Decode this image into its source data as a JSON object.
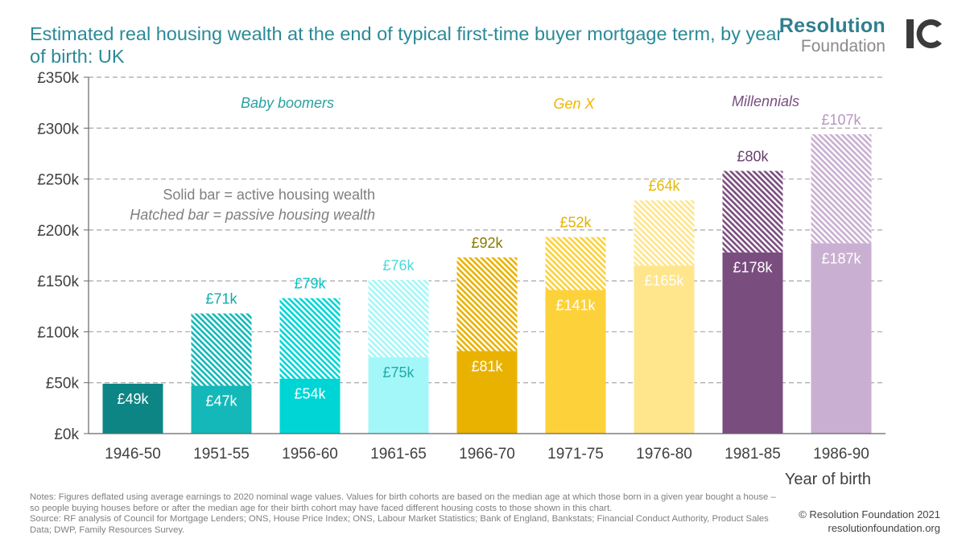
{
  "title": "Estimated real housing wealth at the end of typical first-time buyer mortgage term, by year of birth: UK",
  "logo": {
    "line1": "Resolution",
    "line2": "Foundation",
    "mark": "IC"
  },
  "notes": "Notes: Figures deflated using average earnings to 2020 nominal wage values. Values for birth cohorts are based on the median age at which those born in a given year bought a house – so people buying houses before or after the median age for their birth cohort may have faced different housing costs to those shown in this chart.",
  "source": "Source: RF analysis of Council for Mortgage Lenders; ONS, House Price Index; ONS, Labour Market Statistics; Bank of England, Bankstats; Financial Conduct Authority, Product Sales Data; DWP, Family Resources Survey.",
  "copyright": "© Resolution Foundation 2021",
  "website": "resolutionfoundation.org",
  "chart_data": {
    "type": "bar",
    "stacked": true,
    "categories": [
      "1946-50",
      "1951-55",
      "1956-60",
      "1961-65",
      "1966-70",
      "1971-75",
      "1976-80",
      "1981-85",
      "1986-90"
    ],
    "series": [
      {
        "name": "active housing wealth",
        "values": [
          49,
          47,
          54,
          75,
          81,
          141,
          165,
          178,
          187
        ],
        "labels": [
          "£49k",
          "£47k",
          "£54k",
          "£75k",
          "£81k",
          "£141k",
          "£165k",
          "£178k",
          "£187k"
        ]
      },
      {
        "name": "passive housing wealth",
        "values": [
          0,
          71,
          79,
          76,
          92,
          52,
          64,
          80,
          107
        ],
        "labels": [
          "",
          "£71k",
          "£79k",
          "£76k",
          "£92k",
          "£52k",
          "£64k",
          "£80k",
          "£107k"
        ]
      }
    ],
    "colors": [
      "#0e8585",
      "#14b8b8",
      "#00d5d5",
      "#a4f7f8",
      "#e9b200",
      "#fdd13a",
      "#ffe58c",
      "#7a4d7f",
      "#c9afd1"
    ],
    "label_colors_active": [
      "#ffffff",
      "#ffffff",
      "#ffffff",
      "#22aaaa",
      "#ffffff",
      "#ffffff",
      "#ffffff",
      "#ffffff",
      "#ffffff"
    ],
    "label_colors_passive": [
      "",
      "#14a8a8",
      "#00c4c4",
      "#4fd8da",
      "#8a7a00",
      "#e3b000",
      "#e6b800",
      "#6a3e70",
      "#b896c4"
    ],
    "yticks": [
      "£0k",
      "£50k",
      "£100k",
      "£150k",
      "£200k",
      "£250k",
      "£300k",
      "£350k"
    ],
    "ylim": [
      0,
      350
    ],
    "xlabel": "Year of birth",
    "legend_lines": [
      "Solid bar = active housing wealth",
      "Hatched bar = passive housing wealth"
    ],
    "groups": [
      {
        "label": "Baby boomers",
        "color": "#2aa0a0"
      },
      {
        "label": "Gen X",
        "color": "#f0b400"
      },
      {
        "label": "Millennials",
        "color": "#7a4d7f"
      }
    ],
    "grid": true
  }
}
